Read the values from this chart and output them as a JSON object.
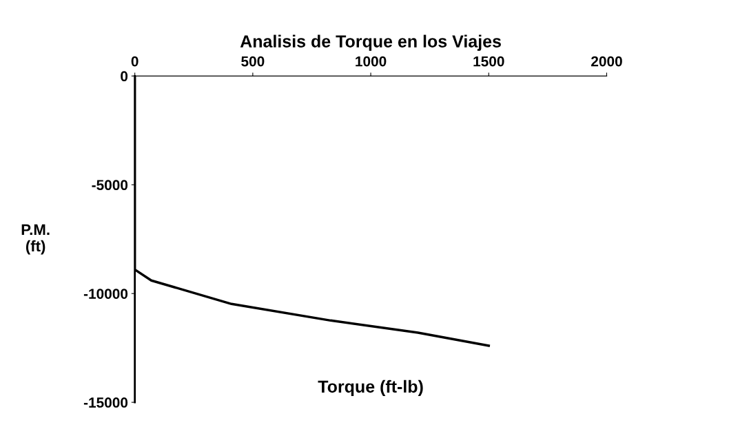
{
  "chart_data": {
    "type": "line",
    "title": "Analisis de Torque en los Viajes",
    "xlabel": "Torque (ft-lb)",
    "ylabel": "P.M.\n(ft)",
    "x": [
      0,
      0,
      70,
      410,
      830,
      1200,
      1500
    ],
    "series": [
      {
        "color": "#000000",
        "values": [
          0,
          -8900,
          -9400,
          -10480,
          -11240,
          -11800,
          -12400
        ]
      }
    ],
    "xlim": [
      0,
      2000
    ],
    "xticks": [
      0,
      500,
      1000,
      1500,
      2000
    ],
    "ylim": [
      -15000,
      0
    ],
    "yticks": [
      0,
      -5000,
      -10000,
      -15000
    ],
    "grid": false,
    "legend": false,
    "marker": "none",
    "line_style": "solid"
  }
}
